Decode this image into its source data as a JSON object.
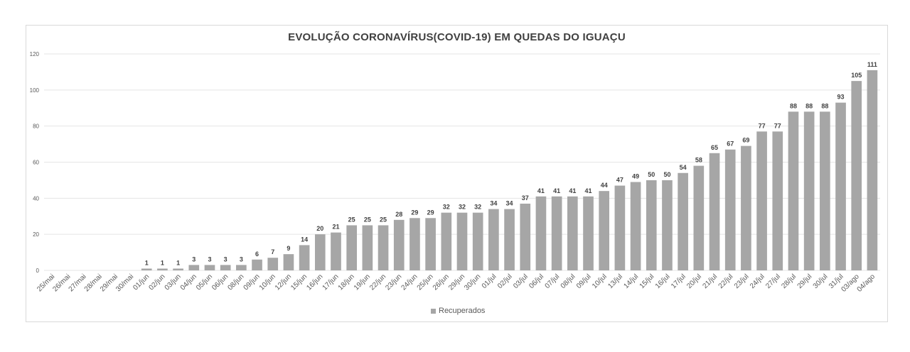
{
  "chart_data": {
    "type": "bar",
    "title": "EVOLUÇÃO CORONAVÍRUS(COVID-19) EM QUEDAS DO IGUAÇU",
    "xlabel": "",
    "ylabel": "",
    "ylim": [
      0,
      120
    ],
    "yticks": [
      0,
      20,
      40,
      60,
      80,
      100,
      120
    ],
    "grid": true,
    "legend_position": "bottom",
    "categories": [
      "25/mai",
      "26/mai",
      "27/mai",
      "28/mai",
      "29/mai",
      "30/mai",
      "01/jun",
      "02/jun",
      "03/jun",
      "04/jun",
      "05/jun",
      "06/jun",
      "08/jun",
      "09/jun",
      "10/jun",
      "12/jun",
      "15/jun",
      "16/jun",
      "17/jun",
      "18/jun",
      "19/jun",
      "22/jun",
      "23/jun",
      "24/jun",
      "25/jun",
      "26/jun",
      "29/jun",
      "30/jun",
      "01/jul",
      "02/jul",
      "03/jul",
      "06/jul",
      "07/jul",
      "08/jul",
      "09/jul",
      "10/jul",
      "13/jul",
      "14/jul",
      "15/jul",
      "16/jul",
      "17/jul",
      "20/jul",
      "21/jul",
      "22/jul",
      "23/jul",
      "24/jul",
      "27/jul",
      "28/jul",
      "29/jul",
      "30/jul",
      "31/jul",
      "03/ago",
      "04/ago"
    ],
    "series": [
      {
        "name": "Recuperados",
        "color": "#a6a6a6",
        "values": [
          0,
          0,
          0,
          0,
          0,
          0,
          1,
          1,
          1,
          3,
          3,
          3,
          3,
          6,
          7,
          9,
          14,
          20,
          21,
          25,
          25,
          25,
          28,
          29,
          29,
          32,
          32,
          32,
          34,
          34,
          37,
          41,
          41,
          41,
          41,
          44,
          47,
          49,
          50,
          50,
          54,
          58,
          65,
          67,
          69,
          77,
          77,
          88,
          88,
          88,
          93,
          105,
          111
        ],
        "labels": [
          "",
          "",
          "",
          "",
          "",
          "",
          "1",
          "1",
          "1",
          "3",
          "3",
          "3",
          "3",
          "6",
          "7",
          "9",
          "14",
          "20",
          "21",
          "25",
          "25",
          "25",
          "28",
          "29",
          "29",
          "32",
          "32",
          "32",
          "34",
          "34",
          "37",
          "41",
          "41",
          "41",
          "41",
          "44",
          "47",
          "49",
          "50",
          "50",
          "54",
          "58",
          "65",
          "67",
          "69",
          "77",
          "77",
          "88",
          "88",
          "88",
          "93",
          "105",
          "111"
        ]
      }
    ]
  },
  "colors": {
    "bar": "#a6a6a6",
    "grid": "#e5e5e5",
    "text": "#404040",
    "axis_text": "#595959"
  }
}
